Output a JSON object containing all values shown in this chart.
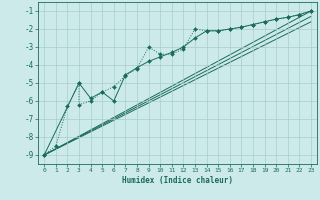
{
  "xlabel": "Humidex (Indice chaleur)",
  "bg_color": "#cceaea",
  "grid_color": "#aacccc",
  "line_color": "#1a6b5a",
  "xlim": [
    -0.5,
    23.5
  ],
  "ylim": [
    -9.5,
    -0.5
  ],
  "yticks": [
    -9,
    -8,
    -7,
    -6,
    -5,
    -4,
    -3,
    -2,
    -1
  ],
  "xticks": [
    0,
    1,
    2,
    3,
    4,
    5,
    6,
    7,
    8,
    9,
    10,
    11,
    12,
    13,
    14,
    15,
    16,
    17,
    18,
    19,
    20,
    21,
    22,
    23
  ],
  "series_dotted": {
    "x": [
      0,
      1,
      2,
      3,
      3,
      4,
      5,
      6,
      7,
      8,
      9,
      10,
      11,
      12,
      13,
      14,
      15,
      16,
      17,
      18,
      19,
      20,
      21,
      22,
      23
    ],
    "y": [
      -9.0,
      -8.5,
      -6.3,
      -5.0,
      -6.2,
      -6.0,
      -5.5,
      -5.2,
      -4.6,
      -4.2,
      -3.0,
      -3.4,
      -3.4,
      -3.1,
      -2.0,
      -2.1,
      -2.1,
      -2.0,
      -1.9,
      -1.75,
      -1.6,
      -1.45,
      -1.35,
      -1.2,
      -1.0
    ]
  },
  "series_solid": {
    "x": [
      0,
      3,
      4,
      5,
      6,
      7,
      8,
      9,
      10,
      11,
      12,
      13,
      14,
      15,
      16,
      17,
      18,
      19,
      20,
      21,
      22,
      23
    ],
    "y": [
      -9.0,
      -5.0,
      -5.85,
      -5.5,
      -6.0,
      -4.55,
      -4.15,
      -3.8,
      -3.55,
      -3.3,
      -3.0,
      -2.5,
      -2.1,
      -2.1,
      -2.0,
      -1.9,
      -1.75,
      -1.6,
      -1.45,
      -1.35,
      -1.2,
      -1.0
    ]
  },
  "line1": {
    "x": [
      0,
      23
    ],
    "y": [
      -9.0,
      -1.0
    ]
  },
  "line2": {
    "x": [
      0,
      23
    ],
    "y": [
      -9.0,
      -1.3
    ]
  },
  "line3": {
    "x": [
      0,
      23
    ],
    "y": [
      -9.0,
      -1.6
    ]
  }
}
